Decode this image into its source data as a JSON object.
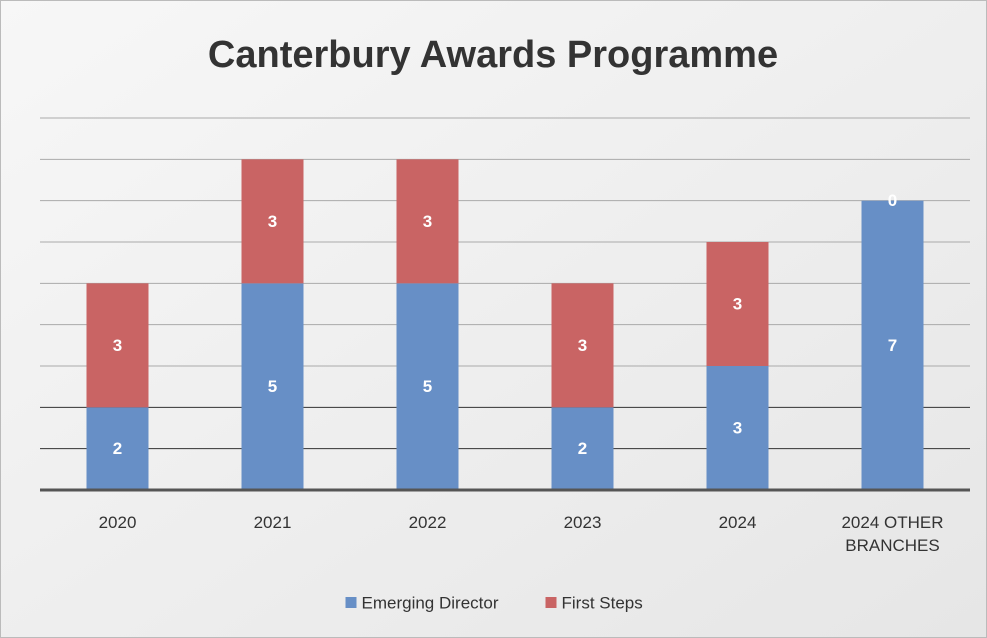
{
  "chart_data": {
    "type": "bar",
    "stacked": true,
    "title": "Canterbury Awards Programme",
    "categories": [
      "2020",
      "2021",
      "2022",
      "2023",
      "2024",
      "2024 OTHER BRANCHES"
    ],
    "series": [
      {
        "name": "Emerging Director",
        "color": "#678fc6",
        "values": [
          2,
          5,
          5,
          2,
          3,
          7
        ]
      },
      {
        "name": "First Steps",
        "color": "#c96464",
        "values": [
          3,
          3,
          3,
          3,
          3,
          0
        ]
      }
    ],
    "ylim": [
      0,
      9
    ],
    "yticks": [
      0,
      1,
      2,
      3,
      4,
      5,
      6,
      7,
      8,
      9
    ],
    "grid": true,
    "legend": "bottom"
  }
}
